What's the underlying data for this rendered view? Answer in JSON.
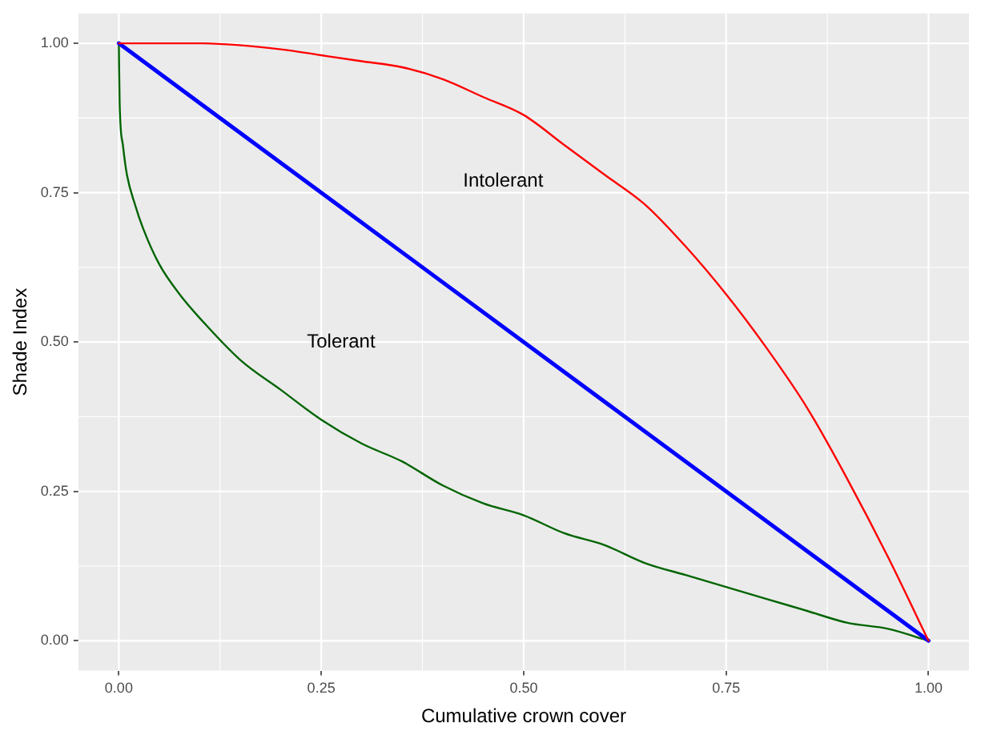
{
  "chart_data": {
    "type": "line",
    "xlabel": "Cumulative crown cover",
    "ylabel": "Shade Index",
    "xlim": [
      -0.05,
      1.05
    ],
    "ylim": [
      -0.05,
      1.05
    ],
    "xticks": [
      {
        "value": 0,
        "label": "0.00"
      },
      {
        "value": 0.25,
        "label": "0.25"
      },
      {
        "value": 0.5,
        "label": "0.50"
      },
      {
        "value": 0.75,
        "label": "0.75"
      },
      {
        "value": 1,
        "label": "1.00"
      }
    ],
    "yticks": [
      {
        "value": 0,
        "label": "0.00"
      },
      {
        "value": 0.25,
        "label": "0.25"
      },
      {
        "value": 0.5,
        "label": "0.50"
      },
      {
        "value": 0.75,
        "label": "0.75"
      },
      {
        "value": 1,
        "label": "1.00"
      }
    ],
    "grid": true,
    "legend": false,
    "marker": "none",
    "line_style": "solid",
    "series": [
      {
        "color": "#ff0000",
        "x": [
          0,
          0.1,
          0.2,
          0.25,
          0.3,
          0.35,
          0.4,
          0.45,
          0.5,
          0.55,
          0.6,
          0.65,
          0.7,
          0.75,
          0.8,
          0.85,
          0.9,
          0.95,
          1
        ],
        "values": [
          1,
          1,
          0.99,
          0.98,
          0.97,
          0.96,
          0.94,
          0.91,
          0.88,
          0.83,
          0.78,
          0.73,
          0.66,
          0.58,
          0.49,
          0.39,
          0.27,
          0.14,
          0
        ]
      },
      {
        "color": "#0000ff",
        "x": [
          0,
          1
        ],
        "values": [
          1,
          0
        ]
      },
      {
        "color": "#006400",
        "x": [
          0,
          0.001,
          0.005,
          0.01,
          0.02,
          0.03,
          0.05,
          0.075,
          0.1,
          0.15,
          0.2,
          0.25,
          0.3,
          0.35,
          0.4,
          0.45,
          0.5,
          0.55,
          0.6,
          0.65,
          0.7,
          0.75,
          0.8,
          0.85,
          0.9,
          0.95,
          1
        ],
        "values": [
          1,
          0.9,
          0.83,
          0.78,
          0.73,
          0.69,
          0.63,
          0.58,
          0.54,
          0.47,
          0.42,
          0.37,
          0.33,
          0.3,
          0.26,
          0.23,
          0.21,
          0.18,
          0.16,
          0.13,
          0.11,
          0.09,
          0.07,
          0.05,
          0.03,
          0.02,
          0
        ]
      }
    ],
    "annotations": [
      "Intolerant",
      "Tolerant"
    ]
  }
}
